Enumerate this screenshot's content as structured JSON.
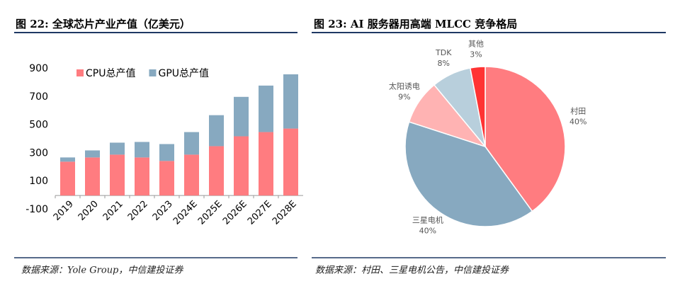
{
  "chart_data": [
    {
      "type": "bar",
      "stacked": true,
      "title": "图 22: 全球芯片产业产值（亿美元）",
      "source": "数据来源：Yole Group，中信建投证券",
      "categories": [
        "2019",
        "2020",
        "2021",
        "2022",
        "2023",
        "2024E",
        "2025E",
        "2026E",
        "2027E",
        "2028E"
      ],
      "series": [
        {
          "name": "CPU总产值",
          "color": "#ff7c80",
          "values": [
            240,
            270,
            290,
            270,
            245,
            290,
            350,
            420,
            450,
            475
          ]
        },
        {
          "name": "GPU总产值",
          "color": "#87a9c0",
          "values": [
            30,
            50,
            85,
            110,
            120,
            160,
            220,
            280,
            330,
            385
          ]
        }
      ],
      "ylim": [
        -100,
        900
      ],
      "yticks": [
        -100,
        100,
        300,
        500,
        700,
        900
      ],
      "grid": false,
      "legend": "top-left"
    },
    {
      "type": "pie",
      "title": "图 23: AI 服务器用高端 MLCC 竞争格局",
      "source": "数据来源：村田、三星电机公告，中信建投证券",
      "categories": [
        "村田",
        "三星电机",
        "太阳诱电",
        "TDK",
        "其他"
      ],
      "values": [
        40,
        40,
        9,
        8,
        3
      ],
      "value_labels": [
        "40%",
        "40%",
        "9%",
        "8%",
        "3%"
      ],
      "colors": [
        "#ff7c80",
        "#87a9c0",
        "#ffb3b3",
        "#b8cfdc",
        "#ff3333"
      ]
    }
  ]
}
